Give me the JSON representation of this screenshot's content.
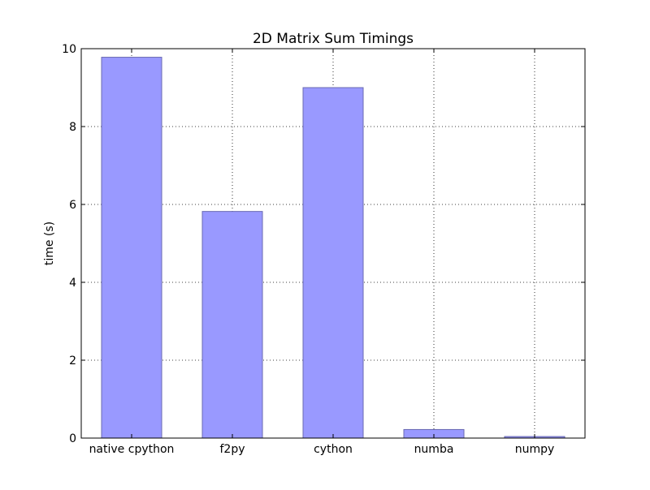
{
  "chart_data": {
    "type": "bar",
    "title": "2D Matrix Sum Timings",
    "xlabel": "",
    "ylabel": "time (s)",
    "categories": [
      "native cpython",
      "f2py",
      "cython",
      "numba",
      "numpy"
    ],
    "values": [
      9.78,
      5.82,
      9.0,
      0.22,
      0.04
    ],
    "ylim": [
      0,
      10
    ],
    "yticks": [
      "0",
      "2",
      "4",
      "6",
      "8",
      "10"
    ],
    "grid": true,
    "bar_color": "#9999ff",
    "bar_edge_color": "#6a6ab2"
  }
}
